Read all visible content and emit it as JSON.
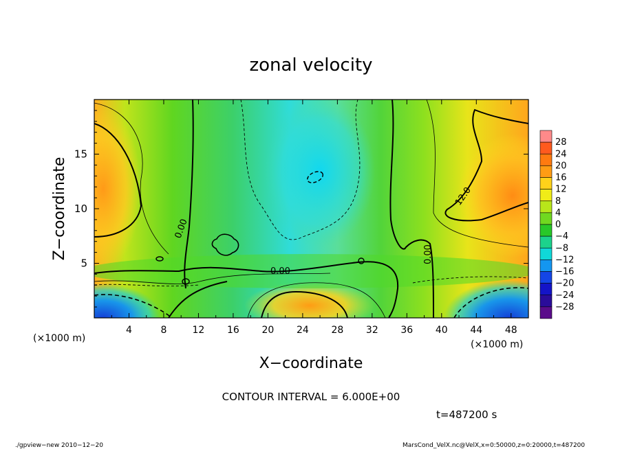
{
  "chart_data": {
    "type": "heatmap",
    "title": "zonal velocity",
    "xlabel": "X−coordinate",
    "ylabel": "Z−coordinate",
    "x_unit_left": "(×1000 m)",
    "x_unit_right": "(×1000 m)",
    "xlim": [
      0,
      50
    ],
    "ylim": [
      0,
      20
    ],
    "x_ticks": [
      4,
      8,
      12,
      16,
      20,
      24,
      28,
      32,
      36,
      40,
      44,
      48
    ],
    "y_ticks": [
      5,
      10,
      15
    ],
    "colorbar_levels": [
      28,
      24,
      20,
      16,
      12,
      8,
      4,
      0,
      -4,
      -8,
      -12,
      -16,
      -20,
      -24,
      -28
    ],
    "colorbar_colors": [
      "#ff8a8a",
      "#ff5a1e",
      "#ff7a10",
      "#ff9c14",
      "#ffd21a",
      "#f0ec18",
      "#b8e61a",
      "#70d820",
      "#28c828",
      "#1cd28c",
      "#10d8d8",
      "#1496f0",
      "#1446e6",
      "#1414c8",
      "#2a0c9a",
      "#5a0c8a"
    ],
    "contour_labels": [
      "0.00",
      "0.00",
      "12.0",
      "0.00"
    ],
    "contour_interval_text": "CONTOUR INTERVAL = 6.000E+00",
    "time_text": "t=487200 s",
    "footer_left": "./gpview−new   2010−12−20",
    "footer_right": "MarsCond_VelX.nc@VelX,x=0:50000,z=0:20000,t=487200"
  }
}
